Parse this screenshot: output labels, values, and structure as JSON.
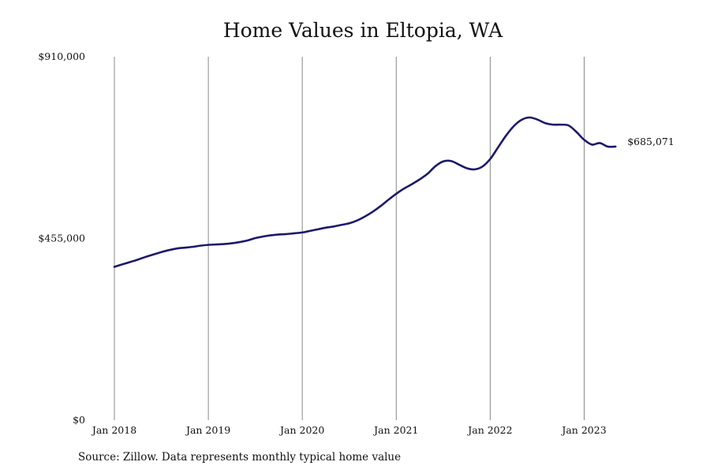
{
  "chart_data": {
    "type": "line",
    "title": "Home Values in Eltopia, WA",
    "source_note": "Source: Zillow. Data represents monthly typical home value",
    "xlabel": "",
    "ylabel": "",
    "ylim": [
      0,
      910000
    ],
    "y_ticks": [
      {
        "value": 0,
        "label": "$0"
      },
      {
        "value": 455000,
        "label": "$455,000"
      },
      {
        "value": 910000,
        "label": "$910,000"
      }
    ],
    "x_ticks": [
      {
        "value": "2018-01",
        "label": "Jan 2018"
      },
      {
        "value": "2019-01",
        "label": "Jan 2019"
      },
      {
        "value": "2020-01",
        "label": "Jan 2020"
      },
      {
        "value": "2021-01",
        "label": "Jan 2021"
      },
      {
        "value": "2022-01",
        "label": "Jan 2022"
      },
      {
        "value": "2023-01",
        "label": "Jan 2023"
      }
    ],
    "grid": "vertical",
    "end_label": "$685,071",
    "line_color": "#1b1a6b",
    "grid_color": "#888888",
    "series": [
      {
        "x": [
          "2018-01",
          "2018-02",
          "2018-03",
          "2018-04",
          "2018-05",
          "2018-06",
          "2018-07",
          "2018-08",
          "2018-09",
          "2018-10",
          "2018-11",
          "2018-12",
          "2019-01",
          "2019-02",
          "2019-03",
          "2019-04",
          "2019-05",
          "2019-06",
          "2019-07",
          "2019-08",
          "2019-09",
          "2019-10",
          "2019-11",
          "2019-12",
          "2020-01",
          "2020-02",
          "2020-03",
          "2020-04",
          "2020-05",
          "2020-06",
          "2020-07",
          "2020-08",
          "2020-09",
          "2020-10",
          "2020-11",
          "2020-12",
          "2021-01",
          "2021-02",
          "2021-03",
          "2021-04",
          "2021-05",
          "2021-06",
          "2021-07",
          "2021-08",
          "2021-09",
          "2021-10",
          "2021-11",
          "2021-12",
          "2022-01",
          "2022-02",
          "2022-03",
          "2022-04",
          "2022-05",
          "2022-06",
          "2022-07",
          "2022-08",
          "2022-09",
          "2022-10",
          "2022-11",
          "2022-12",
          "2023-01",
          "2023-02",
          "2023-03",
          "2023-04",
          "2023-05"
        ],
        "values": [
          384000,
          390000,
          396000,
          402000,
          409000,
          415000,
          421000,
          426000,
          430000,
          432000,
          434000,
          437000,
          439000,
          440000,
          441000,
          443000,
          446000,
          450000,
          456000,
          460000,
          463000,
          465000,
          466000,
          468000,
          470000,
          474000,
          478000,
          482000,
          485000,
          489000,
          493000,
          500000,
          510000,
          522000,
          536000,
          552000,
          567000,
          580000,
          591000,
          603000,
          617000,
          636000,
          648000,
          649000,
          640000,
          631000,
          628000,
          635000,
          654000,
          683000,
          712000,
          736000,
          752000,
          758000,
          753000,
          744000,
          740000,
          740000,
          738000,
          722000,
          702000,
          690000,
          694000,
          685071,
          685071
        ]
      }
    ]
  }
}
